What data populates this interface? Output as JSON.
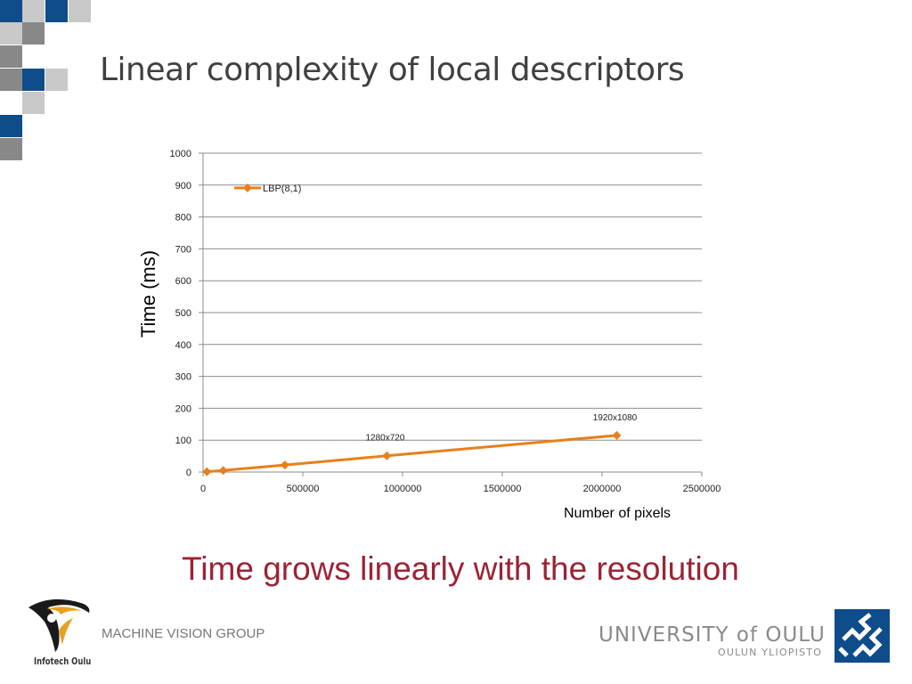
{
  "slide": {
    "title": "Linear complexity of local descriptors",
    "tagline": "Time grows linearly with the resolution"
  },
  "footer": {
    "logo_caption": "Infotech Oulu",
    "group_name": "MACHINE VISION GROUP",
    "university": "UNIVERSITY of OULU",
    "university_sub": "OULUN YLIOPISTO"
  },
  "colors": {
    "series": "#e8801a",
    "title": "#404040",
    "tagline": "#9b2335",
    "blue": "#0f4c8a",
    "gray_dark": "#888888",
    "gray_light": "#c8c8c8"
  },
  "chart_data": {
    "type": "line",
    "title": "",
    "xlabel": "Number of pixels",
    "ylabel": "Time (ms)",
    "xlim": [
      0,
      2500000
    ],
    "ylim": [
      0,
      1000
    ],
    "xticks": [
      0,
      500000,
      1000000,
      1500000,
      2000000,
      2500000
    ],
    "yticks": [
      0,
      100,
      200,
      300,
      400,
      500,
      600,
      700,
      800,
      900,
      1000
    ],
    "grid": true,
    "legend_position": "top-left",
    "series": [
      {
        "name": "LBP(8,1)",
        "x": [
          19200,
          101376,
          409920,
          921600,
          2073600
        ],
        "y": [
          1,
          5,
          22,
          51,
          115
        ]
      }
    ],
    "annotations": [
      {
        "text": "1280x720",
        "x": 921600,
        "y": 51
      },
      {
        "text": "1920x1080",
        "x": 2073600,
        "y": 115
      }
    ]
  }
}
